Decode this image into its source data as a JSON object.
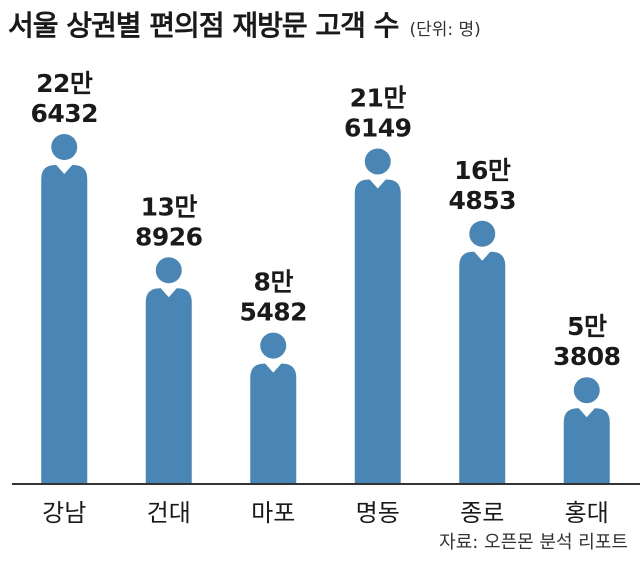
{
  "title": "서울 상권별 편의점 재방문 고객 수",
  "unit": "(단위: 명)",
  "source": "자료: 오픈몬 분석 리포트",
  "colors": {
    "bar": "#4a86b5",
    "axis": "#333333",
    "text": "#1a1a1a"
  },
  "chart_data": {
    "type": "bar",
    "title": "서울 상권별 편의점 재방문 고객 수",
    "unit": "(단위: 명)",
    "categories": [
      "강남",
      "건대",
      "마포",
      "명동",
      "종로",
      "홍대"
    ],
    "values": [
      226432,
      138926,
      85482,
      216149,
      164853,
      53808
    ],
    "value_labels": [
      [
        "22만",
        "6432"
      ],
      [
        "13만",
        "8926"
      ],
      [
        "8만",
        "5482"
      ],
      [
        "21만",
        "6149"
      ],
      [
        "16만",
        "4853"
      ],
      [
        "5만",
        "3808"
      ]
    ],
    "ylim": [
      0,
      240000
    ],
    "grid": false,
    "legend": false
  }
}
